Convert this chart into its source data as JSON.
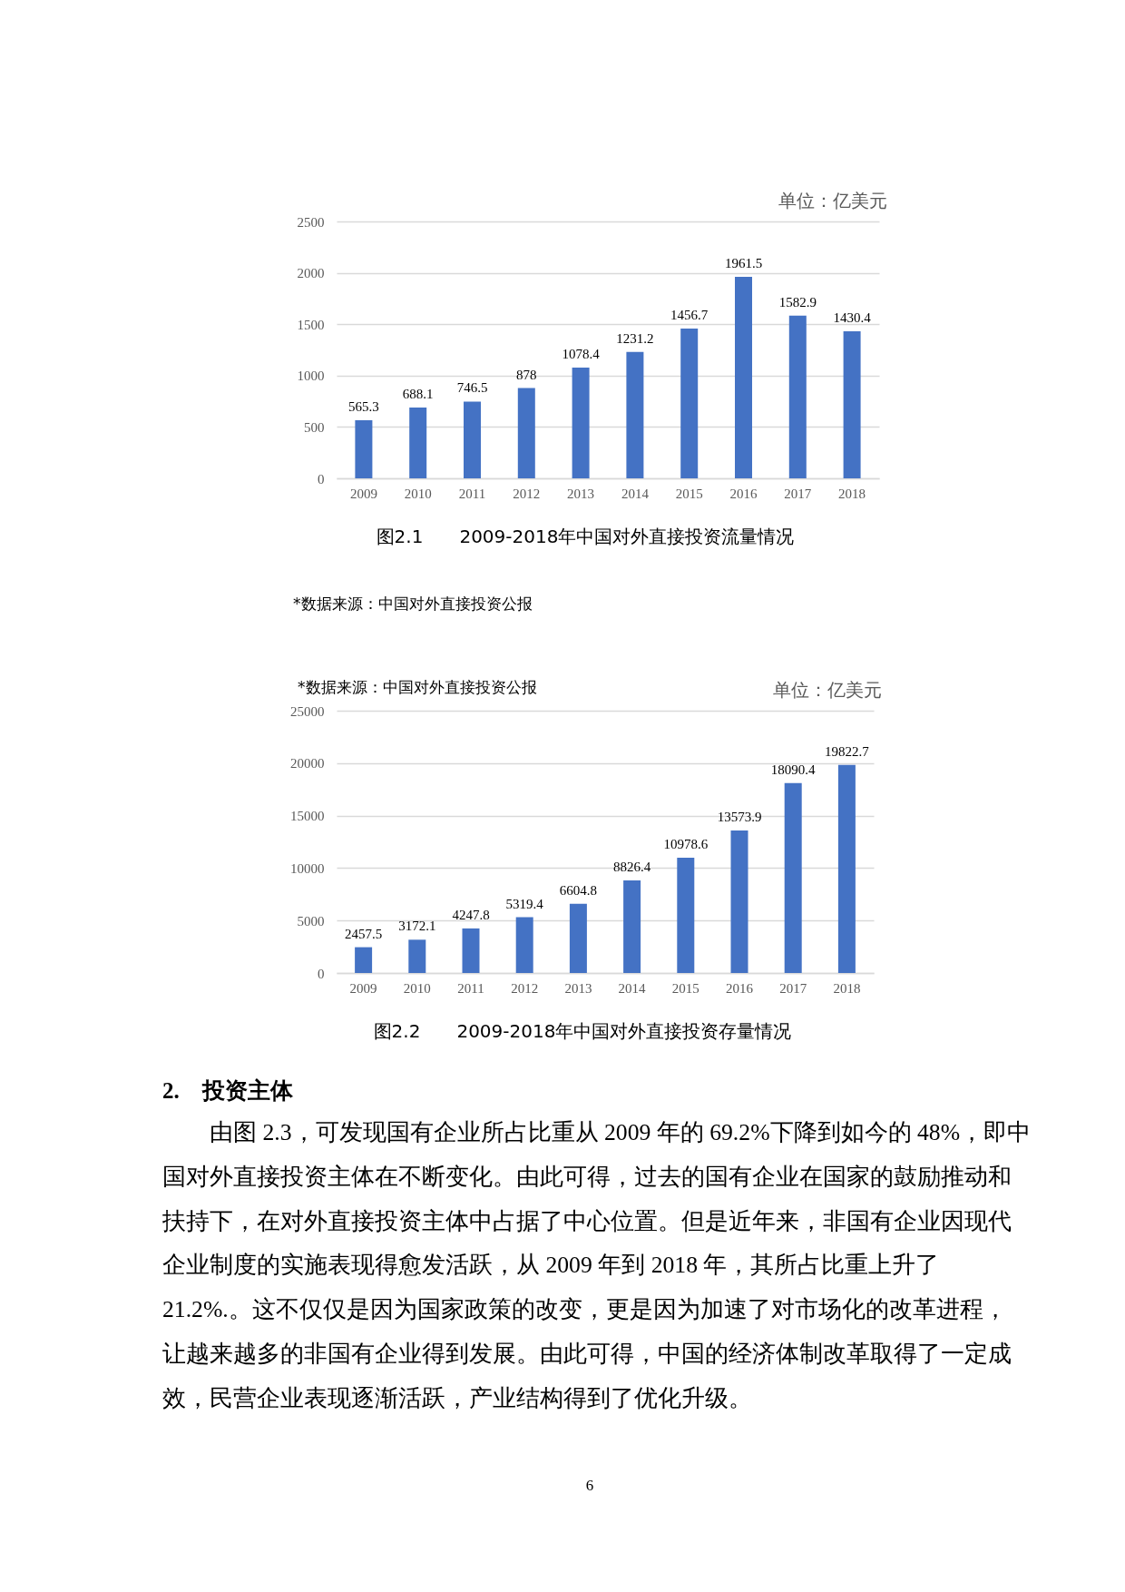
{
  "chart_data": [
    {
      "type": "bar",
      "title": "图2.1　　2009-2018年中国对外直接投资流量情况",
      "ylabel": "单位：亿美元",
      "categories": [
        "2009",
        "2010",
        "2011",
        "2012",
        "2013",
        "2014",
        "2015",
        "2016",
        "2017",
        "2018"
      ],
      "series": [
        {
          "color": "#4472c4",
          "values": [
            565.3,
            688.1,
            746.5,
            878,
            1078.4,
            1231.2,
            1456.7,
            1961.5,
            1582.9,
            1430.4
          ]
        }
      ],
      "ylim": [
        0,
        2500
      ],
      "yticks": [
        0,
        500,
        1000,
        1500,
        2000,
        2500
      ],
      "grid": "y",
      "data_labels": true,
      "annotations": [
        "*数据来源：中国对外直接投资公报"
      ]
    },
    {
      "type": "bar",
      "title": "图2.2　　2009-2018年中国对外直接投资存量情况",
      "ylabel": "单位：亿美元",
      "categories": [
        "2009",
        "2010",
        "2011",
        "2012",
        "2013",
        "2014",
        "2015",
        "2016",
        "2017",
        "2018"
      ],
      "series": [
        {
          "color": "#4472c4",
          "values": [
            2457.5,
            3172.1,
            4247.8,
            5319.4,
            6604.8,
            8826.4,
            10978.6,
            13573.9,
            18090.4,
            19822.7
          ]
        }
      ],
      "ylim": [
        0,
        25000
      ],
      "yticks": [
        0,
        5000,
        10000,
        15000,
        20000,
        25000
      ],
      "grid": "y",
      "data_labels": true,
      "annotations": [
        "*数据来源：中国对外直接投资公报"
      ]
    },
    {
      "type": "other",
      "title": "2.　投资主体",
      "annotations": [
        "由图 2.3，可发现国有企业所占比重从 2009 年的 69.2%下降到如今的 48%，即中",
        "国对外直接投资主体在不断变化。由此可得，过去的国有企业在国家的鼓励推动和",
        "扶持下，在对外直接投资主体中占据了中心位置。但是近年来，非国有企业因现代",
        "企业制度的实施表现得愈发活跃，从 2009 年到 2018 年，其所占比重上升了",
        "21.2%.。这不仅仅是因为国家政策的改变，更是因为加速了对市场化的改革进程，",
        "让越来越多的非国有企业得到发展。由此可得，中国的经济体制改革取得了一定成",
        "效，民营企业表现逐渐活跃，产业结构得到了优化升级。",
        "6"
      ]
    }
  ]
}
